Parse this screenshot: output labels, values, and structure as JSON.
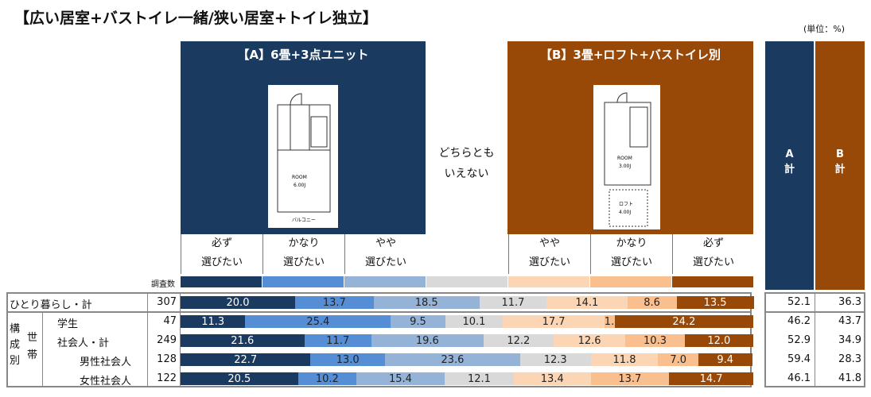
{
  "title": "【広い居室+バストイレ一緒/狭い居室+トイレ独立】",
  "unit": "(単位：%)",
  "groupA": {
    "label": "【A】6畳+3点ユニット",
    "plan": {
      "room": "ROOM",
      "size": "6.00J",
      "balcony": "バルコニー"
    }
  },
  "groupB": {
    "label": "【B】3畳+ロフト+バストイレ別",
    "plan": {
      "room": "ROOM",
      "size": "3.00J",
      "loft": "ロフト",
      "loft_size": "4.00J"
    }
  },
  "neutral": {
    "line1": "どちらとも",
    "line2": "いえない"
  },
  "sub_headers": [
    [
      "必ず",
      "選びたい"
    ],
    [
      "かなり",
      "選びたい"
    ],
    [
      "やや",
      "選びたい"
    ],
    [
      "",
      ""
    ],
    [
      "やや",
      "選びたい"
    ],
    [
      "かなり",
      "選びたい"
    ],
    [
      "必ず",
      "選びたい"
    ]
  ],
  "n_label": "調査数",
  "totals_headers": {
    "a": [
      "A",
      "計"
    ],
    "b": [
      "B",
      "計"
    ]
  },
  "side_labels": {
    "outer": "構成別",
    "inner": "世帯"
  },
  "colors": [
    "#1b3a5f",
    "#558ed5",
    "#95b3d7",
    "#d9d9d9",
    "#fcd5b5",
    "#fabf8f",
    "#984807"
  ],
  "chart_data": {
    "type": "bar",
    "stacked": true,
    "orientation": "horizontal",
    "xlim": [
      0,
      100
    ],
    "categories": [
      "ひとり暮らし・計",
      "学生",
      "社会人・計",
      "男性社会人",
      "女性社会人"
    ],
    "n": [
      307,
      47,
      249,
      128,
      122
    ],
    "series": [
      {
        "name": "【A】必ず選びたい",
        "values": [
          20.0,
          11.3,
          21.6,
          22.7,
          20.5
        ]
      },
      {
        "name": "【A】かなり選びたい",
        "values": [
          13.7,
          25.4,
          11.7,
          13.0,
          10.2
        ]
      },
      {
        "name": "【A】やや選びたい",
        "values": [
          18.5,
          9.5,
          19.6,
          23.6,
          15.4
        ]
      },
      {
        "name": "どちらともいえない",
        "values": [
          11.7,
          10.1,
          12.2,
          12.3,
          12.1
        ]
      },
      {
        "name": "【B】やや選びたい",
        "values": [
          14.1,
          17.7,
          12.6,
          11.8,
          13.4
        ]
      },
      {
        "name": "【B】かなり選びたい",
        "values": [
          8.6,
          1.8,
          10.3,
          7.0,
          13.7
        ]
      },
      {
        "name": "【B】必ず選びたい",
        "values": [
          13.5,
          24.2,
          12.0,
          9.4,
          14.7
        ]
      }
    ],
    "a_total": [
      "52.1",
      "46.2",
      "52.9",
      "59.4",
      "46.1"
    ],
    "b_total": [
      "36.3",
      "43.7",
      "34.9",
      "28.3",
      "41.8"
    ]
  }
}
